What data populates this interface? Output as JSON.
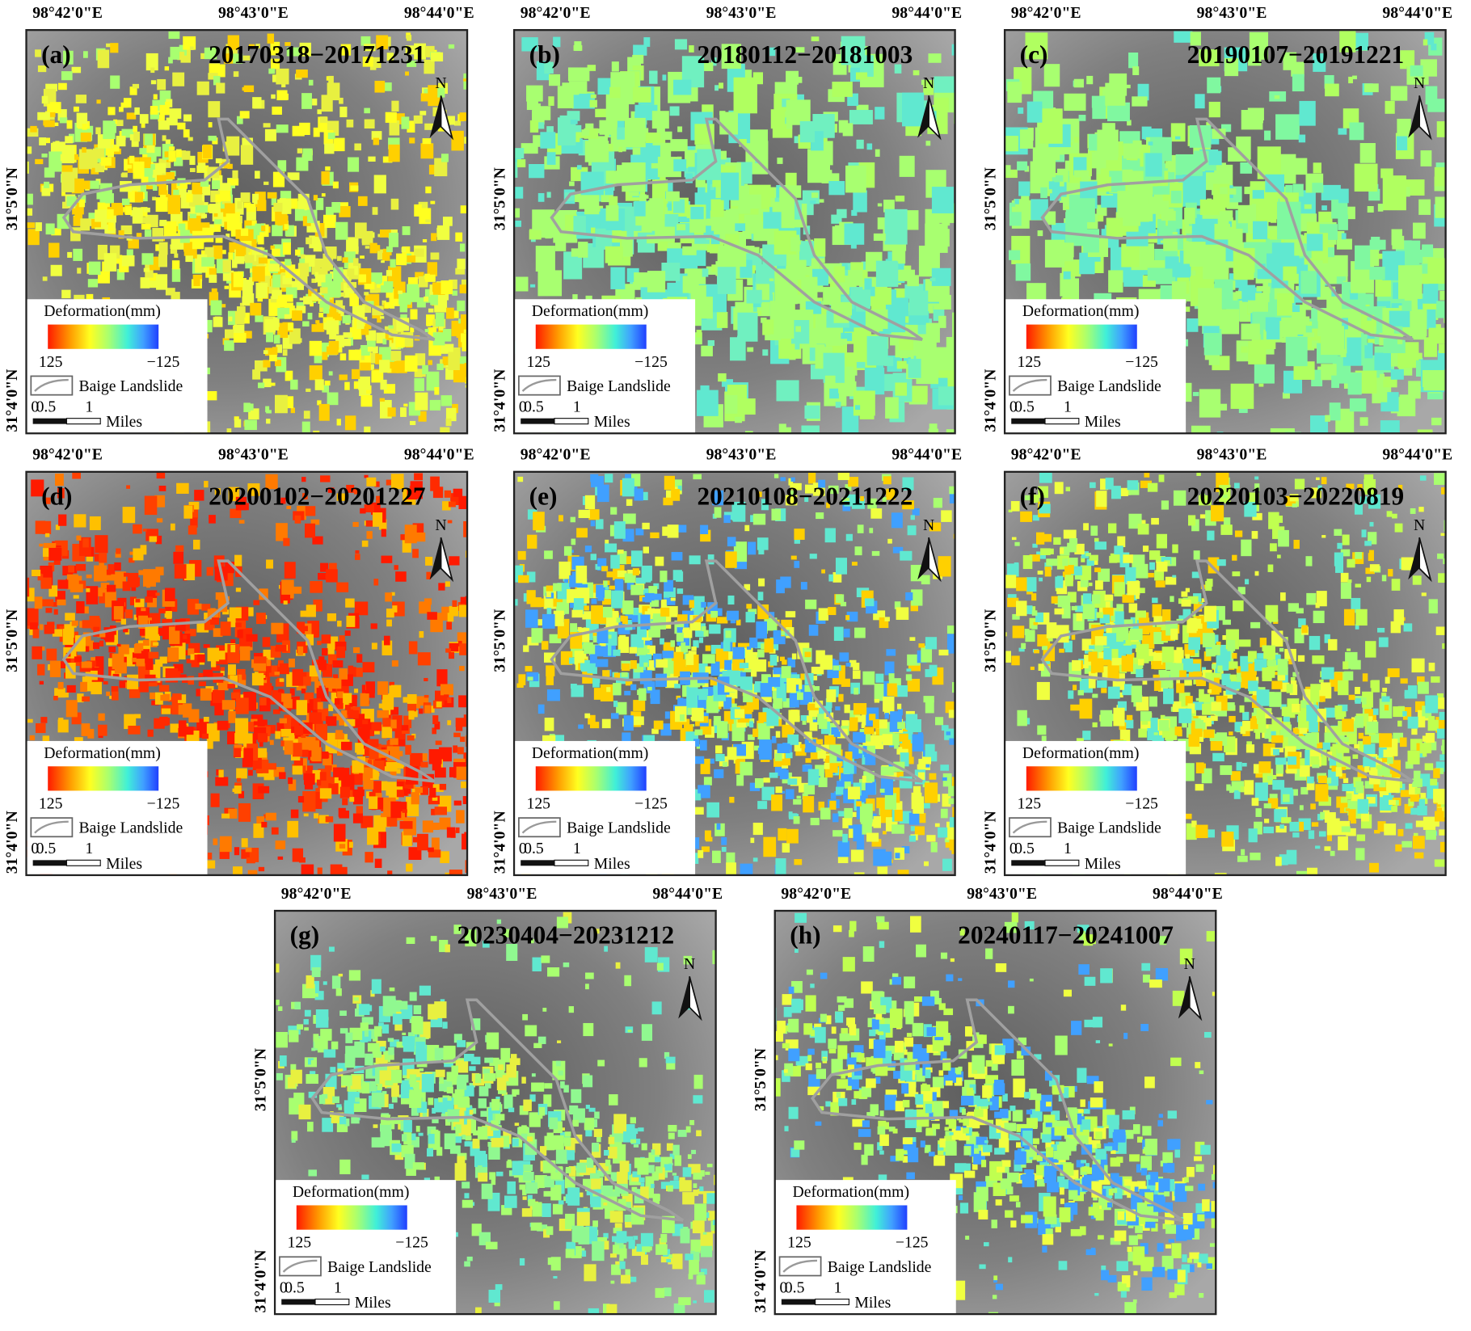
{
  "panels": [
    {
      "label": "(a)",
      "period": "20170318−20171231"
    },
    {
      "label": "(b)",
      "period": "20180112−20181003"
    },
    {
      "label": "(c)",
      "period": "20190107−20191221"
    },
    {
      "label": "(d)",
      "period": "20200102−20201227"
    },
    {
      "label": "(e)",
      "period": "20210108−20211222"
    },
    {
      "label": "(f)",
      "period": "20220103−20220819"
    },
    {
      "label": "(g)",
      "period": "20230404−20231212"
    },
    {
      "label": "(h)",
      "period": "20240117−20241007"
    }
  ],
  "axes": {
    "x_ticks": [
      "98°42'0\"E",
      "98°43'0\"E",
      "98°44'0\"E"
    ],
    "y_ticks": [
      "31°5'0\"N",
      "31°4'0\"N"
    ]
  },
  "legend": {
    "title": "Deformation(mm)",
    "max": "125",
    "min": "−125",
    "outline": "Baige Landslide",
    "scale": [
      "0",
      "0.5",
      "1"
    ],
    "unit": "Miles"
  },
  "north": "N"
}
